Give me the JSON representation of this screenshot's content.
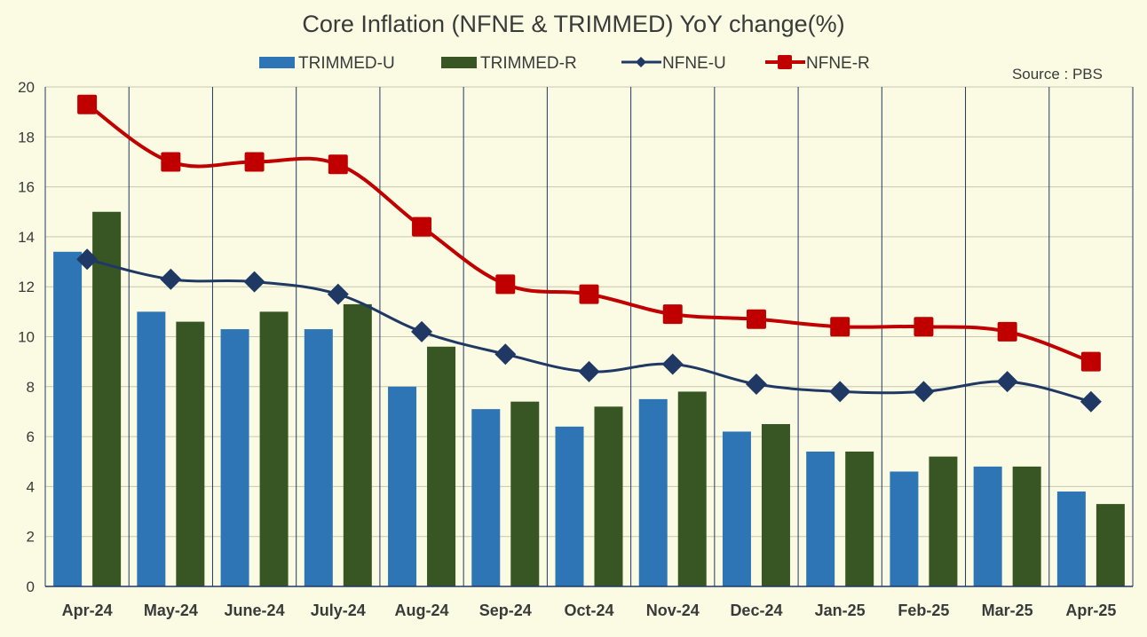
{
  "chart_data": {
    "type": "bar",
    "title": "Core Inflation (NFNE & TRIMMED) YoY change(%)",
    "source": "Source : PBS",
    "categories": [
      "Apr-24",
      "May-24",
      "June-24",
      "July-24",
      "Aug-24",
      "Sep-24",
      "Oct-24",
      "Nov-24",
      "Dec-24",
      "Jan-25",
      "Feb-25",
      "Mar-25",
      "Apr-25"
    ],
    "ylim": [
      0,
      20
    ],
    "yticks": [
      0,
      2,
      4,
      6,
      8,
      10,
      12,
      14,
      16,
      18,
      20
    ],
    "grid": true,
    "legend_position": "top",
    "series": [
      {
        "name": "TRIMMED-U",
        "kind": "bar",
        "color": "#2e75b6",
        "values": [
          13.4,
          11.0,
          10.3,
          10.3,
          8.0,
          7.1,
          6.4,
          7.5,
          6.2,
          5.4,
          4.6,
          4.8,
          3.8
        ]
      },
      {
        "name": "TRIMMED-R",
        "kind": "bar",
        "color": "#375623",
        "values": [
          15.0,
          10.6,
          11.0,
          11.3,
          9.6,
          7.4,
          7.2,
          7.8,
          6.5,
          5.4,
          5.2,
          4.8,
          3.3
        ]
      },
      {
        "name": "NFNE-U",
        "kind": "line",
        "marker": "diamond",
        "color": "#1f3864",
        "values": [
          13.1,
          12.3,
          12.2,
          11.7,
          10.2,
          9.3,
          8.6,
          8.9,
          8.1,
          7.8,
          7.8,
          8.2,
          7.4
        ]
      },
      {
        "name": "NFNE-R",
        "kind": "line",
        "marker": "square",
        "color": "#c00000",
        "values": [
          19.3,
          17.0,
          17.0,
          16.9,
          14.4,
          12.1,
          11.7,
          10.9,
          10.7,
          10.4,
          10.4,
          10.2,
          9.0
        ]
      }
    ]
  }
}
